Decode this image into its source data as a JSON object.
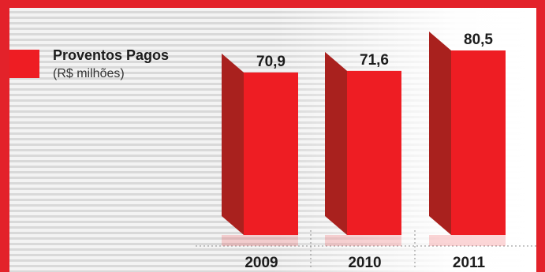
{
  "legend": {
    "title": "Proventos Pagos",
    "subtitle": "(R$ milhões)"
  },
  "colors": {
    "frame": "#e3222a",
    "bar_front": "#ee1d23",
    "bar_side": "#a9211e"
  },
  "chart_data": {
    "type": "bar",
    "categories": [
      "2009",
      "2010",
      "2011"
    ],
    "values": [
      70.9,
      71.6,
      80.5
    ],
    "value_labels": [
      "70,9",
      "71,6",
      "80,5"
    ],
    "title": "",
    "xlabel": "",
    "ylabel": "",
    "ylim": [
      0,
      85
    ],
    "grid": false,
    "legend": "top-left"
  }
}
